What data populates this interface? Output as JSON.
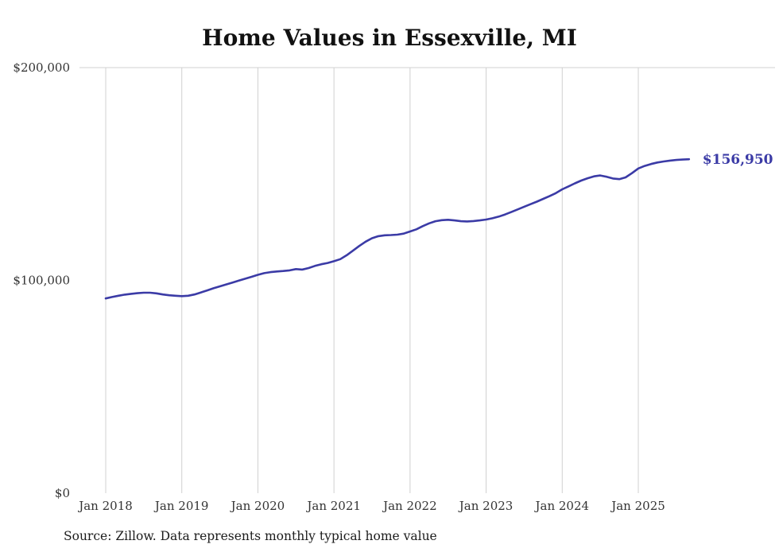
{
  "chart_data": {
    "type": "line",
    "title": "Home Values in Essexville, MI",
    "source_note": "Source: Zillow. Data represents monthly typical home value",
    "end_label": "$156,950",
    "last_value": 156950,
    "line_color": "#3b3ba6",
    "grid_color": "#d0d0d0",
    "frequency": "monthly",
    "start_month": "Jan 2018",
    "end_month": "Sep 2025",
    "ylim": [
      0,
      200000
    ],
    "y_ticks": [
      {
        "value": 0,
        "label": "$0"
      },
      {
        "value": 100000,
        "label": "$100,000"
      },
      {
        "value": 200000,
        "label": "$200,000"
      }
    ],
    "x_tick_labels": [
      "Jan 2018",
      "Jan 2019",
      "Jan 2020",
      "Jan 2021",
      "Jan 2022",
      "Jan 2023",
      "Jan 2024",
      "Jan 2025"
    ],
    "x_tick_month_index": [
      0,
      12,
      24,
      36,
      48,
      60,
      72,
      84
    ],
    "values": [
      91500,
      92200,
      92800,
      93300,
      93700,
      94000,
      94200,
      94200,
      93900,
      93400,
      93000,
      92800,
      92600,
      92800,
      93400,
      94300,
      95300,
      96300,
      97200,
      98100,
      99000,
      99900,
      100800,
      101700,
      102600,
      103400,
      103900,
      104200,
      104400,
      104700,
      105300,
      105100,
      105800,
      106800,
      107600,
      108200,
      109000,
      110000,
      111800,
      114000,
      116200,
      118200,
      119800,
      120800,
      121200,
      121300,
      121500,
      122000,
      123000,
      124000,
      125500,
      126800,
      127800,
      128300,
      128500,
      128200,
      127800,
      127700,
      127900,
      128200,
      128600,
      129200,
      130000,
      131000,
      132200,
      133400,
      134600,
      135800,
      137000,
      138300,
      139600,
      141000,
      142800,
      144200,
      145600,
      146900,
      148000,
      148900,
      149300,
      148700,
      147900,
      147600,
      148400,
      150400,
      152600,
      153800,
      154700,
      155400,
      155900,
      156300,
      156600,
      156800,
      156950
    ]
  }
}
